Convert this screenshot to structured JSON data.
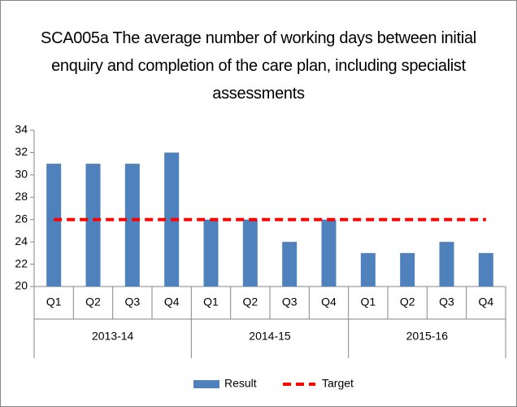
{
  "chart_data": {
    "type": "bar",
    "title": "SCA005a The average number of working days between initial enquiry and completion of the care plan, including specialist assessments",
    "categories": [
      "Q1",
      "Q2",
      "Q3",
      "Q4",
      "Q1",
      "Q2",
      "Q3",
      "Q4",
      "Q1",
      "Q2",
      "Q3",
      "Q4"
    ],
    "groups": [
      "2013-14",
      "2014-15",
      "2015-16"
    ],
    "series": [
      {
        "name": "Result",
        "color": "#4f81bd",
        "values": [
          31,
          31,
          31,
          32,
          26,
          26,
          24,
          26,
          23,
          23,
          24,
          23
        ]
      },
      {
        "name": "Target",
        "color": "#ff0000",
        "type": "line",
        "values": [
          26,
          26,
          26,
          26,
          26,
          26,
          26,
          26,
          26,
          26,
          26,
          26
        ]
      }
    ],
    "ylim": [
      20,
      34
    ],
    "yticks": [
      20,
      22,
      24,
      26,
      28,
      30,
      32,
      34
    ],
    "grid": false,
    "legend": "bottom"
  }
}
